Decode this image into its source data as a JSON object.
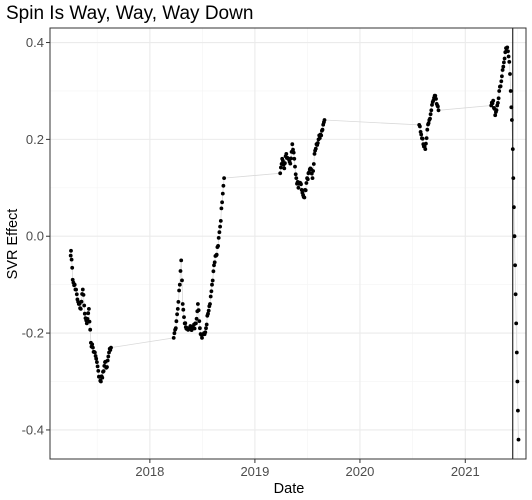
{
  "chart_data": {
    "type": "scatter",
    "title": "Spin Is Way, Way, Way Down",
    "xlabel": "Date",
    "ylabel": "SVR Effect",
    "x_ticks": [
      "2018",
      "2019",
      "2020",
      "2021"
    ],
    "y_ticks": [
      "-0.4",
      "-0.2",
      "0.0",
      "0.2",
      "0.4"
    ],
    "x_range": [
      "2017-01-19",
      "2021-07-31"
    ],
    "ylim": [
      -0.46,
      0.43
    ],
    "grid": true,
    "legend": "none",
    "colors": {
      "points": "#000000",
      "connector": "#d9d9d9",
      "grid": "#ebebeb",
      "panel_border": "#333333"
    },
    "vertical_line_date": "2021-06-15",
    "series": [
      {
        "anchors": [
          [
            "2017-04-01",
            -0.04
          ],
          [
            "2017-04-02",
            -0.03
          ],
          [
            "2017-04-08",
            -0.09
          ],
          [
            "2017-04-15",
            -0.1
          ],
          [
            "2017-04-22",
            -0.12
          ],
          [
            "2017-04-29",
            -0.14
          ],
          [
            "2017-05-06",
            -0.15
          ],
          [
            "2017-05-13",
            -0.11
          ],
          [
            "2017-05-20",
            -0.16
          ],
          [
            "2017-05-27",
            -0.18
          ],
          [
            "2017-06-03",
            -0.15
          ],
          [
            "2017-06-10",
            -0.22
          ],
          [
            "2017-06-17",
            -0.23
          ],
          [
            "2017-06-24",
            -0.24
          ],
          [
            "2017-07-01",
            -0.26
          ],
          [
            "2017-07-08",
            -0.29
          ],
          [
            "2017-07-15",
            -0.3
          ],
          [
            "2017-07-22",
            -0.28
          ],
          [
            "2017-07-29",
            -0.26
          ],
          [
            "2017-08-05",
            -0.27
          ],
          [
            "2017-08-12",
            -0.24
          ],
          [
            "2017-08-19",
            -0.23
          ],
          [
            "2018-03-25",
            -0.21
          ],
          [
            "2018-04-01",
            -0.19
          ],
          [
            "2018-04-08",
            -0.15
          ],
          [
            "2018-04-15",
            -0.1
          ],
          [
            "2018-04-20",
            -0.05
          ],
          [
            "2018-04-25",
            -0.14
          ],
          [
            "2018-05-02",
            -0.18
          ],
          [
            "2018-05-10",
            -0.19
          ],
          [
            "2018-05-20",
            -0.19
          ],
          [
            "2018-06-01",
            -0.19
          ],
          [
            "2018-06-10",
            -0.18
          ],
          [
            "2018-06-17",
            -0.14
          ],
          [
            "2018-06-24",
            -0.19
          ],
          [
            "2018-07-01",
            -0.21
          ],
          [
            "2018-07-08",
            -0.2
          ],
          [
            "2018-07-15",
            -0.19
          ],
          [
            "2018-07-22",
            -0.16
          ],
          [
            "2018-07-29",
            -0.14
          ],
          [
            "2018-08-05",
            -0.1
          ],
          [
            "2018-08-12",
            -0.06
          ],
          [
            "2018-08-19",
            -0.04
          ],
          [
            "2018-08-26",
            -0.02
          ],
          [
            "2018-09-02",
            0.02
          ],
          [
            "2018-09-09",
            0.07
          ],
          [
            "2018-09-16",
            0.12
          ],
          [
            "2019-03-30",
            0.13
          ],
          [
            "2019-04-06",
            0.16
          ],
          [
            "2019-04-13",
            0.14
          ],
          [
            "2019-04-20",
            0.17
          ],
          [
            "2019-04-27",
            0.16
          ],
          [
            "2019-05-04",
            0.15
          ],
          [
            "2019-05-11",
            0.19
          ],
          [
            "2019-05-18",
            0.16
          ],
          [
            "2019-05-25",
            0.12
          ],
          [
            "2019-06-01",
            0.1
          ],
          [
            "2019-06-08",
            0.11
          ],
          [
            "2019-06-15",
            0.09
          ],
          [
            "2019-06-22",
            0.08
          ],
          [
            "2019-06-29",
            0.11
          ],
          [
            "2019-07-06",
            0.13
          ],
          [
            "2019-07-13",
            0.14
          ],
          [
            "2019-07-20",
            0.12
          ],
          [
            "2019-07-27",
            0.17
          ],
          [
            "2019-08-03",
            0.19
          ],
          [
            "2019-08-10",
            0.2
          ],
          [
            "2019-08-17",
            0.21
          ],
          [
            "2019-08-24",
            0.22
          ],
          [
            "2019-08-31",
            0.24
          ],
          [
            "2020-07-25",
            0.23
          ],
          [
            "2020-08-01",
            0.21
          ],
          [
            "2020-08-08",
            0.19
          ],
          [
            "2020-08-15",
            0.18
          ],
          [
            "2020-08-22",
            0.22
          ],
          [
            "2020-08-29",
            0.24
          ],
          [
            "2020-09-05",
            0.26
          ],
          [
            "2020-09-12",
            0.28
          ],
          [
            "2020-09-19",
            0.29
          ],
          [
            "2020-09-26",
            0.27
          ],
          [
            "2020-09-30",
            0.26
          ],
          [
            "2021-04-01",
            0.27
          ],
          [
            "2021-04-08",
            0.28
          ],
          [
            "2021-04-15",
            0.25
          ],
          [
            "2021-04-22",
            0.27
          ],
          [
            "2021-04-29",
            0.3
          ],
          [
            "2021-05-06",
            0.32
          ],
          [
            "2021-05-13",
            0.35
          ],
          [
            "2021-05-20",
            0.38
          ],
          [
            "2021-05-27",
            0.39
          ],
          [
            "2021-06-03",
            0.36
          ],
          [
            "2021-06-08",
            0.3
          ],
          [
            "2021-06-12",
            0.24
          ],
          [
            "2021-06-15",
            0.18
          ],
          [
            "2021-06-17",
            0.12
          ],
          [
            "2021-06-19",
            0.06
          ],
          [
            "2021-06-21",
            0.0
          ],
          [
            "2021-06-23",
            -0.06
          ],
          [
            "2021-06-25",
            -0.12
          ],
          [
            "2021-06-27",
            -0.18
          ],
          [
            "2021-06-29",
            -0.24
          ],
          [
            "2021-07-01",
            -0.3
          ],
          [
            "2021-07-03",
            -0.36
          ],
          [
            "2021-07-05",
            -0.42
          ]
        ],
        "segment_starts": [
          "2017-04-01",
          "2018-03-25",
          "2019-03-30",
          "2020-07-25",
          "2021-04-01"
        ],
        "season_end": "2021-06-15"
      }
    ]
  }
}
